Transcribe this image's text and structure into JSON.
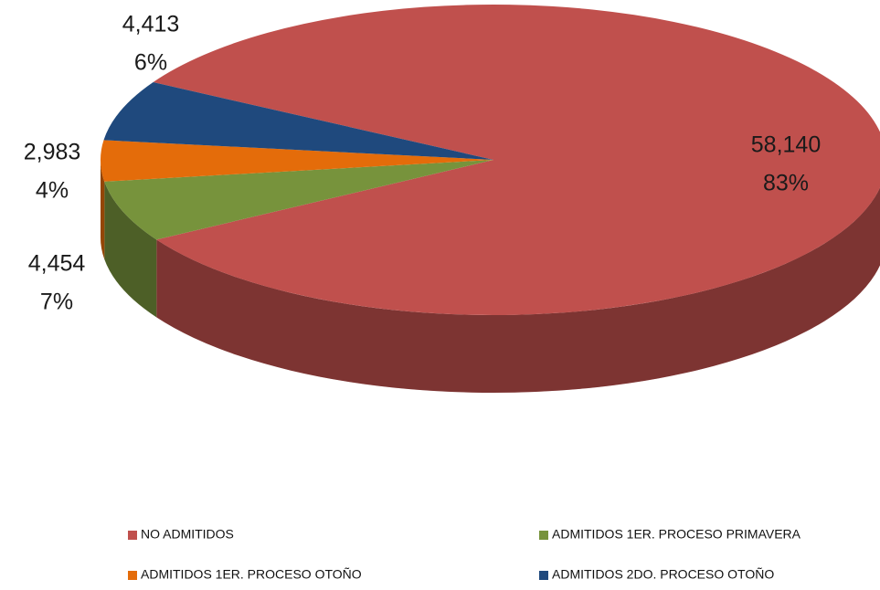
{
  "chart_data": {
    "type": "pie3d",
    "categories": [
      "NO ADMITIDOS",
      "ADMITIDOS 1ER. PROCESO PRIMAVERA",
      "ADMITIDOS 1ER. PROCESO OTOÑO",
      "ADMITIDOS 2DO. PROCESO OTOÑO"
    ],
    "values": [
      58140,
      4454,
      2983,
      4413
    ],
    "value_labels": [
      "58,140",
      "4,454",
      "2,983",
      "4,413"
    ],
    "percent_labels": [
      "83%",
      "7%",
      "4%",
      "6%"
    ],
    "colors": [
      "#c0504d",
      "#77933c",
      "#e46c0a",
      "#1f497d"
    ],
    "legend": "bottom"
  }
}
